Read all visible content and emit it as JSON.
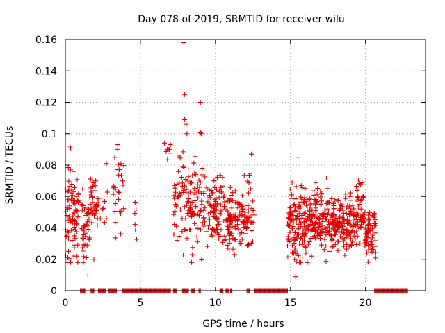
{
  "chart_data": {
    "type": "scatter",
    "title": "Day 078 of 2019, SRMTID for receiver wilu",
    "xlabel": "GPS time / hours",
    "ylabel": "SRMTID / TECUs",
    "xlim": [
      0,
      24
    ],
    "ylim": [
      0,
      0.16
    ],
    "xticks": [
      0,
      5,
      10,
      15,
      20
    ],
    "xtick_labels": [
      "0",
      "5",
      "10",
      "15",
      "20"
    ],
    "yticks": [
      0,
      0.02,
      0.04,
      0.06,
      0.08,
      0.1,
      0.12,
      0.14,
      0.16
    ],
    "ytick_labels": [
      "0",
      "0.02",
      "0.04",
      "0.06",
      "0.08",
      "0.1",
      "0.12",
      "0.14",
      "0.16"
    ],
    "grid": true,
    "marker": "+",
    "color": "#e00000",
    "clusters": [
      {
        "x_start": 0.0,
        "x_end": 0.9,
        "y_mean": 0.048,
        "y_spread": 0.014,
        "count": 90
      },
      {
        "x_start": 1.1,
        "x_end": 1.6,
        "y_mean": 0.045,
        "y_spread": 0.014,
        "count": 40
      },
      {
        "x_start": 1.6,
        "x_end": 2.2,
        "y_mean": 0.056,
        "y_spread": 0.008,
        "count": 40
      },
      {
        "x_start": 2.3,
        "x_end": 2.8,
        "y_mean": 0.06,
        "y_spread": 0.01,
        "count": 10
      },
      {
        "x_start": 3.2,
        "x_end": 3.9,
        "y_mean": 0.062,
        "y_spread": 0.014,
        "count": 30
      },
      {
        "x_start": 4.6,
        "x_end": 4.8,
        "y_mean": 0.052,
        "y_spread": 0.013,
        "count": 6
      },
      {
        "x_start": 6.7,
        "x_end": 7.0,
        "y_mean": 0.088,
        "y_spread": 0.004,
        "count": 6
      },
      {
        "x_start": 7.2,
        "x_end": 9.4,
        "y_mean": 0.055,
        "y_spread": 0.014,
        "count": 130
      },
      {
        "x_start": 9.4,
        "x_end": 10.6,
        "y_mean": 0.052,
        "y_spread": 0.011,
        "count": 90
      },
      {
        "x_start": 10.6,
        "x_end": 11.9,
        "y_mean": 0.043,
        "y_spread": 0.01,
        "count": 110
      },
      {
        "x_start": 11.9,
        "x_end": 12.6,
        "y_mean": 0.048,
        "y_spread": 0.013,
        "count": 45
      },
      {
        "x_start": 14.8,
        "x_end": 15.9,
        "y_mean": 0.043,
        "y_spread": 0.01,
        "count": 110
      },
      {
        "x_start": 15.9,
        "x_end": 17.6,
        "y_mean": 0.044,
        "y_spread": 0.01,
        "count": 170
      },
      {
        "x_start": 17.6,
        "x_end": 19.2,
        "y_mean": 0.043,
        "y_spread": 0.009,
        "count": 150
      },
      {
        "x_start": 19.2,
        "x_end": 19.9,
        "y_mean": 0.05,
        "y_spread": 0.01,
        "count": 60
      },
      {
        "x_start": 19.9,
        "x_end": 20.7,
        "y_mean": 0.036,
        "y_spread": 0.008,
        "count": 70
      }
    ],
    "outliers": [
      {
        "x": 7.9,
        "y": 0.158
      },
      {
        "x": 7.95,
        "y": 0.125
      },
      {
        "x": 9.0,
        "y": 0.12
      },
      {
        "x": 7.95,
        "y": 0.109
      },
      {
        "x": 8.05,
        "y": 0.106
      },
      {
        "x": 9.0,
        "y": 0.101
      },
      {
        "x": 9.05,
        "y": 0.1
      },
      {
        "x": 8.1,
        "y": 0.1
      },
      {
        "x": 6.6,
        "y": 0.094
      },
      {
        "x": 7.0,
        "y": 0.093
      },
      {
        "x": 0.3,
        "y": 0.092
      },
      {
        "x": 0.35,
        "y": 0.091
      },
      {
        "x": 3.5,
        "y": 0.093
      },
      {
        "x": 12.4,
        "y": 0.087
      },
      {
        "x": 15.5,
        "y": 0.085
      },
      {
        "x": 1.5,
        "y": 0.01
      },
      {
        "x": 15.35,
        "y": 0.009
      },
      {
        "x": 1.9,
        "y": 0.02
      },
      {
        "x": 1.4,
        "y": 0.021
      },
      {
        "x": 16.4,
        "y": 0.022
      },
      {
        "x": 20.2,
        "y": 0.026
      }
    ],
    "zero_runs": [
      [
        1.0,
        1.3
      ],
      [
        1.7,
        1.9
      ],
      [
        2.2,
        2.7
      ],
      [
        2.9,
        3.4
      ],
      [
        3.8,
        7.0
      ],
      [
        7.2,
        7.4
      ],
      [
        7.8,
        8.2
      ],
      [
        8.4,
        8.6
      ],
      [
        8.9,
        9.0
      ],
      [
        10.3,
        10.5
      ],
      [
        10.7,
        10.9
      ],
      [
        11.0,
        11.1
      ],
      [
        12.1,
        12.3
      ],
      [
        12.6,
        14.8
      ],
      [
        20.6,
        22.8
      ]
    ]
  }
}
